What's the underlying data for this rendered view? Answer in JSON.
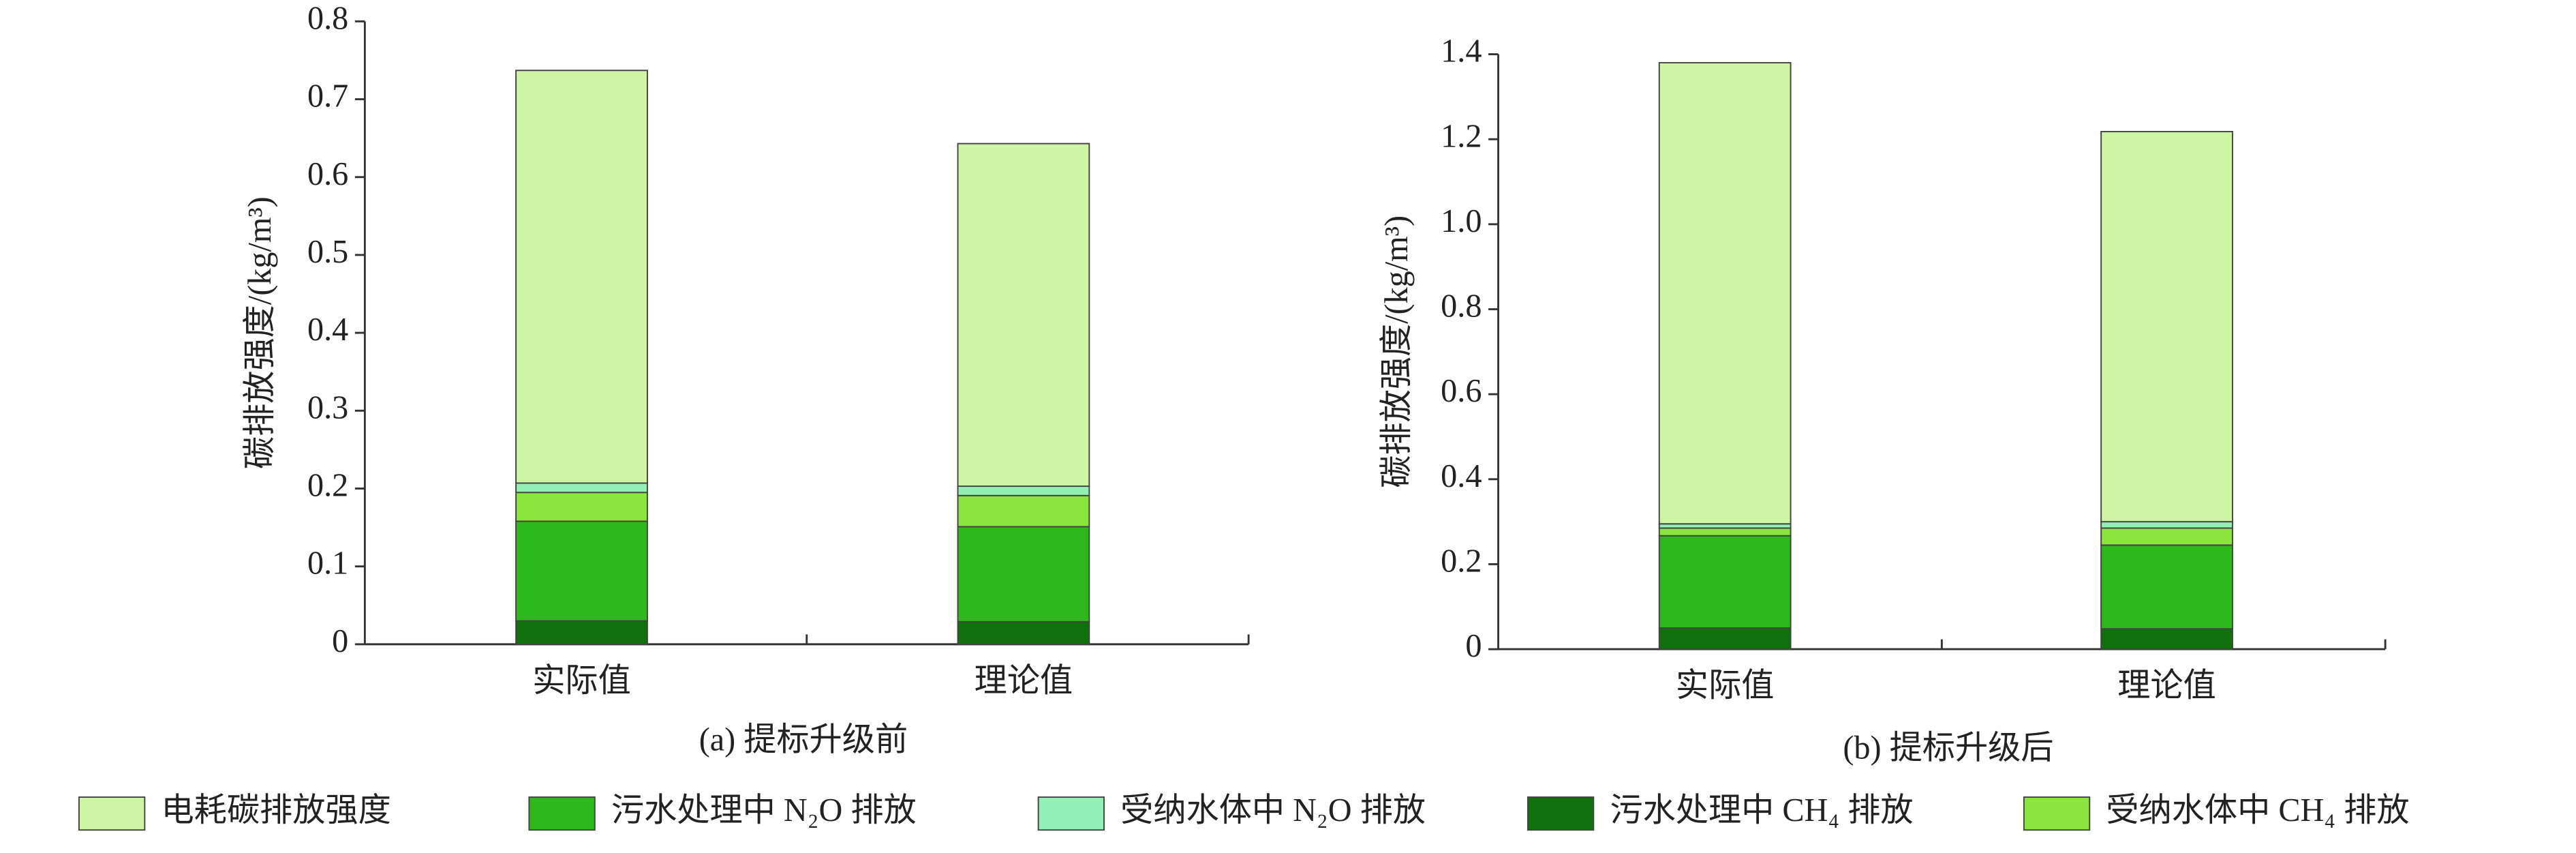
{
  "chart_data": [
    {
      "type": "stacked_bar",
      "xlabel": "(a) 提标升级前",
      "ylabel": "碳排放强度/(kg/m³)",
      "categories": [
        "实际值",
        "理论值"
      ],
      "ylim": [
        0,
        0.8
      ],
      "yticks": [
        0,
        0.1,
        0.2,
        0.3,
        0.4,
        0.5,
        0.6,
        0.7,
        0.8
      ],
      "series": [
        {
          "name": "污水处理中 CH₄ 排放",
          "color": "#10700b",
          "values": [
            0.03,
            0.029
          ]
        },
        {
          "name": "污水处理中 N₂O 排放",
          "color": "#2db81c",
          "values": [
            0.128,
            0.122
          ]
        },
        {
          "name": "受纳水体中 CH₄ 排放",
          "color": "#8ae63c",
          "values": [
            0.037,
            0.04
          ]
        },
        {
          "name": "受纳水体中 N₂O 排放",
          "color": "#92f0b4",
          "values": [
            0.012,
            0.012
          ]
        },
        {
          "name": "电耗碳排放强度",
          "color": "#cdf5a3",
          "values": [
            0.53,
            0.44
          ]
        }
      ]
    },
    {
      "type": "stacked_bar",
      "xlabel": "(b) 提标升级后",
      "ylabel": "碳排放强度/(kg/m³)",
      "categories": [
        "实际值",
        "理论值"
      ],
      "ylim": [
        0,
        1.4
      ],
      "yticks": [
        0,
        0.2,
        0.4,
        0.6,
        0.8,
        {
          "value": 1,
          "label": "1.0"
        },
        1.2,
        1.4
      ],
      "series": [
        {
          "color": "#10700b",
          "values": [
            0.05,
            0.048
          ]
        },
        {
          "color": "#2db81c",
          "values": [
            0.217,
            0.197
          ]
        },
        {
          "color": "#8ae63c",
          "values": [
            0.018,
            0.04
          ]
        },
        {
          "color": "#92f0b4",
          "values": [
            0.01,
            0.015
          ]
        },
        {
          "color": "#cdf5a3",
          "values": [
            1.085,
            0.918
          ]
        }
      ]
    }
  ]
}
